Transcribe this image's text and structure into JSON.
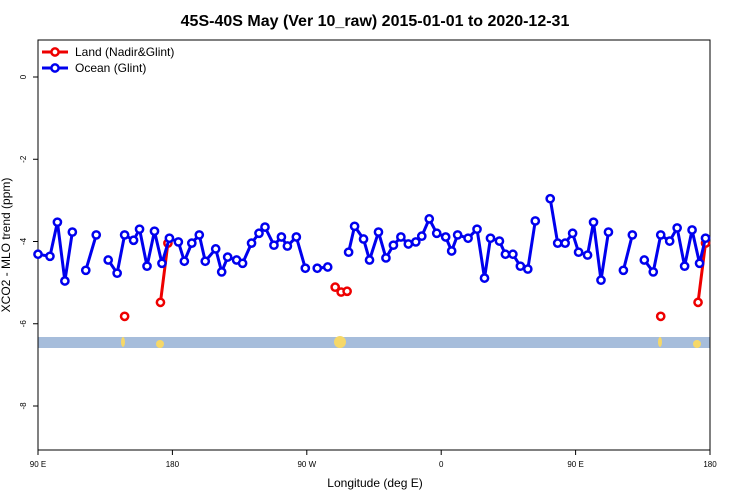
{
  "chart_data": {
    "type": "line",
    "title": "45S-40S May (Ver 10_raw)   2015-01-01 to 2020-12-31",
    "x_label": "Longitude (deg E)",
    "y_label": "XCO2 - MLO trend (ppm)",
    "xlim": [
      90,
      540
    ],
    "ylim": [
      -9.07,
      0.9
    ],
    "xticks": [
      {
        "value": 90,
        "label": "90 E"
      },
      {
        "value": 180,
        "label": "180"
      },
      {
        "value": 270,
        "label": "90 W"
      },
      {
        "value": 360,
        "label": "0"
      },
      {
        "value": 450,
        "label": "90 E"
      },
      {
        "value": 540,
        "label": "180"
      }
    ],
    "yticks": [
      0,
      -2,
      -4,
      -6,
      -8
    ],
    "legend": "top-left",
    "series": [
      {
        "name": "Land (Nadir&Glint)",
        "color": "#ee0000",
        "x": [
          148,
          null,
          172,
          177,
          null,
          289,
          293,
          297,
          null,
          507,
          null,
          532,
          537
        ],
        "values": [
          -5.82,
          null,
          -5.48,
          -4.04,
          null,
          -5.11,
          -5.23,
          -5.21,
          null,
          -5.82,
          null,
          -5.48,
          -4.04
        ]
      },
      {
        "name": "Ocean (Glint)",
        "color": "#0000ee",
        "x": [
          90,
          98,
          103,
          108,
          113,
          null,
          122,
          129,
          null,
          137,
          143,
          148,
          154,
          158,
          163,
          168,
          173,
          178,
          184,
          188,
          193,
          198,
          202,
          209,
          213,
          217,
          223,
          227,
          233,
          238,
          242,
          248,
          253,
          257,
          263,
          269,
          null,
          277,
          284,
          null,
          298,
          302,
          308,
          312,
          318,
          323,
          328,
          333,
          338,
          343,
          347,
          352,
          357,
          363,
          367,
          371,
          378,
          384,
          389,
          393,
          399,
          403,
          408,
          413,
          418,
          423,
          null,
          433,
          438,
          443,
          448,
          452,
          458,
          462,
          467,
          472,
          null,
          482,
          488,
          null,
          496,
          502,
          507,
          513,
          518,
          523,
          528,
          533,
          537
        ],
        "values": [
          -4.31,
          -4.36,
          -3.53,
          -4.96,
          -3.77,
          null,
          -4.7,
          -3.84,
          null,
          -4.45,
          -4.77,
          -3.84,
          -3.97,
          -3.7,
          -4.6,
          -3.75,
          -4.53,
          -3.92,
          -4.01,
          -4.48,
          -4.04,
          -3.84,
          -4.48,
          -4.18,
          -4.74,
          -4.38,
          -4.45,
          -4.53,
          -4.04,
          -3.8,
          -3.65,
          -4.09,
          -3.89,
          -4.11,
          -3.89,
          -4.65,
          null,
          -4.65,
          -4.62,
          null,
          -4.26,
          -3.63,
          -3.94,
          -4.45,
          -3.77,
          -4.4,
          -4.09,
          -3.89,
          -4.06,
          -4.01,
          -3.87,
          -3.45,
          -3.8,
          -3.89,
          -4.23,
          -3.84,
          -3.92,
          -3.7,
          -4.89,
          -3.92,
          -3.99,
          -4.31,
          -4.31,
          -4.6,
          -4.67,
          -3.5,
          null,
          -2.96,
          -4.04,
          -4.04,
          -3.8,
          -4.26,
          -4.33,
          -3.53,
          -4.94,
          -3.77,
          null,
          -4.7,
          -3.84,
          null,
          -4.45,
          -4.74,
          -3.84,
          -3.99,
          -3.67,
          -4.6,
          -3.72,
          -4.53,
          -3.92
        ]
      }
    ]
  }
}
